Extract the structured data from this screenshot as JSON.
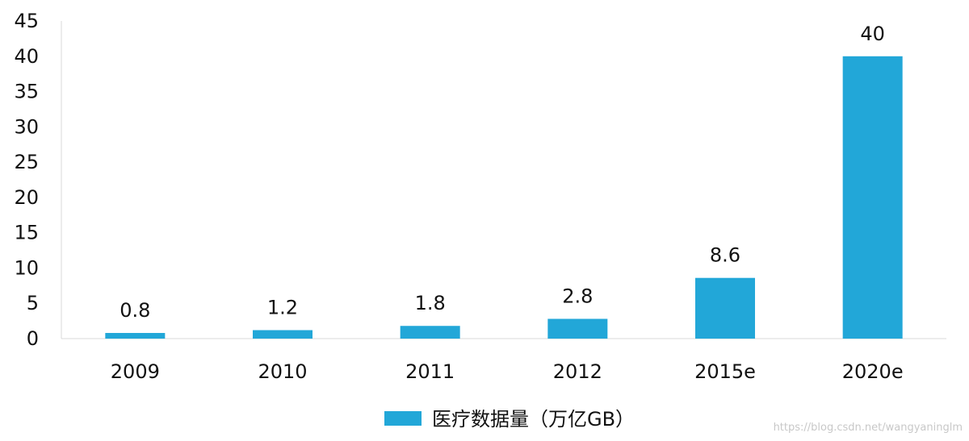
{
  "chart_data": {
    "type": "bar",
    "categories": [
      "2009",
      "2010",
      "2011",
      "2012",
      "2015e",
      "2020e"
    ],
    "values": [
      0.8,
      1.2,
      1.8,
      2.8,
      8.6,
      40
    ],
    "data_labels": [
      "0.8",
      "1.2",
      "1.8",
      "2.8",
      "8.6",
      "40"
    ],
    "yticks": [
      "0",
      "5",
      "10",
      "15",
      "20",
      "25",
      "30",
      "35",
      "40",
      "45"
    ],
    "ylim": [
      0,
      45
    ],
    "legend": {
      "label": "医疗数据量（万亿GB）",
      "placement": "bottom-center"
    },
    "colors": {
      "bar": "#22a7d8",
      "axis": "#d9d9d9",
      "text": "#111111"
    },
    "grid": false
  },
  "watermark": "https://blog.csdn.net/wangyaninglm"
}
